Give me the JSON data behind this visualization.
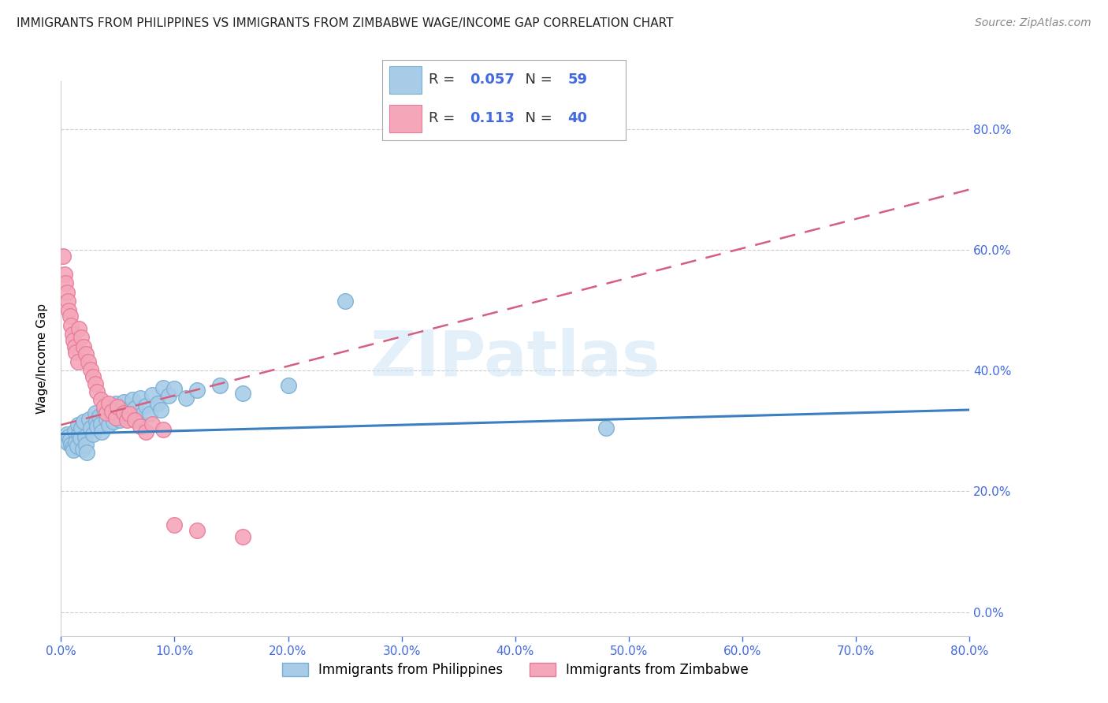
{
  "title": "IMMIGRANTS FROM PHILIPPINES VS IMMIGRANTS FROM ZIMBABWE WAGE/INCOME GAP CORRELATION CHART",
  "source": "Source: ZipAtlas.com",
  "ylabel": "Wage/Income Gap",
  "legend_label_1": "Immigrants from Philippines",
  "legend_label_2": "Immigrants from Zimbabwe",
  "r1": "0.057",
  "n1": "59",
  "r2": "0.113",
  "n2": "40",
  "color_blue": "#a8cce8",
  "color_pink": "#f4a7b9",
  "color_blue_edge": "#7aafd4",
  "color_pink_edge": "#e87a9a",
  "line_blue": "#3c7fc0",
  "line_pink": "#d45f80",
  "axis_label_color": "#4169e1",
  "title_color": "#222222",
  "source_color": "#888888",
  "watermark": "ZIPatlas",
  "xlim": [
    0.0,
    0.8
  ],
  "ylim": [
    -0.04,
    0.88
  ],
  "ytick_vals": [
    0.0,
    0.2,
    0.4,
    0.6,
    0.8
  ],
  "xtick_vals": [
    0.0,
    0.1,
    0.2,
    0.3,
    0.4,
    0.5,
    0.6,
    0.7,
    0.8
  ],
  "philippines_x": [
    0.005,
    0.006,
    0.007,
    0.008,
    0.009,
    0.01,
    0.011,
    0.012,
    0.013,
    0.014,
    0.015,
    0.016,
    0.017,
    0.018,
    0.019,
    0.02,
    0.021,
    0.022,
    0.023,
    0.025,
    0.026,
    0.028,
    0.03,
    0.031,
    0.032,
    0.034,
    0.035,
    0.036,
    0.038,
    0.04,
    0.042,
    0.043,
    0.045,
    0.046,
    0.048,
    0.05,
    0.052,
    0.055,
    0.058,
    0.06,
    0.063,
    0.065,
    0.068,
    0.07,
    0.075,
    0.078,
    0.08,
    0.085,
    0.088,
    0.09,
    0.095,
    0.1,
    0.11,
    0.12,
    0.14,
    0.16,
    0.2,
    0.25,
    0.48
  ],
  "philippines_y": [
    0.295,
    0.28,
    0.29,
    0.285,
    0.278,
    0.272,
    0.268,
    0.3,
    0.282,
    0.275,
    0.31,
    0.295,
    0.288,
    0.305,
    0.27,
    0.315,
    0.29,
    0.278,
    0.265,
    0.32,
    0.305,
    0.295,
    0.33,
    0.315,
    0.308,
    0.325,
    0.312,
    0.298,
    0.335,
    0.32,
    0.31,
    0.34,
    0.328,
    0.315,
    0.345,
    0.33,
    0.318,
    0.348,
    0.335,
    0.322,
    0.352,
    0.338,
    0.325,
    0.355,
    0.342,
    0.328,
    0.36,
    0.345,
    0.335,
    0.372,
    0.358,
    0.37,
    0.355,
    0.368,
    0.375,
    0.362,
    0.375,
    0.515,
    0.305
  ],
  "zimbabwe_x": [
    0.002,
    0.003,
    0.004,
    0.005,
    0.006,
    0.007,
    0.008,
    0.009,
    0.01,
    0.011,
    0.012,
    0.013,
    0.015,
    0.016,
    0.018,
    0.02,
    0.022,
    0.024,
    0.026,
    0.028,
    0.03,
    0.032,
    0.035,
    0.038,
    0.04,
    0.042,
    0.045,
    0.048,
    0.05,
    0.055,
    0.058,
    0.06,
    0.065,
    0.07,
    0.075,
    0.08,
    0.09,
    0.1,
    0.12,
    0.16
  ],
  "zimbabwe_y": [
    0.59,
    0.56,
    0.545,
    0.53,
    0.515,
    0.5,
    0.49,
    0.475,
    0.46,
    0.45,
    0.44,
    0.43,
    0.415,
    0.47,
    0.455,
    0.44,
    0.428,
    0.415,
    0.402,
    0.39,
    0.378,
    0.365,
    0.352,
    0.34,
    0.33,
    0.345,
    0.332,
    0.322,
    0.34,
    0.33,
    0.318,
    0.328,
    0.318,
    0.308,
    0.298,
    0.312,
    0.302,
    0.145,
    0.135,
    0.125
  ],
  "phil_trend_x": [
    0.0,
    0.8
  ],
  "phil_trend_y": [
    0.295,
    0.335
  ],
  "zimb_trend_x": [
    0.0,
    0.8
  ],
  "zimb_trend_y": [
    0.31,
    0.7
  ],
  "title_fontsize": 11,
  "source_fontsize": 10,
  "tick_fontsize": 11,
  "ylabel_fontsize": 11
}
